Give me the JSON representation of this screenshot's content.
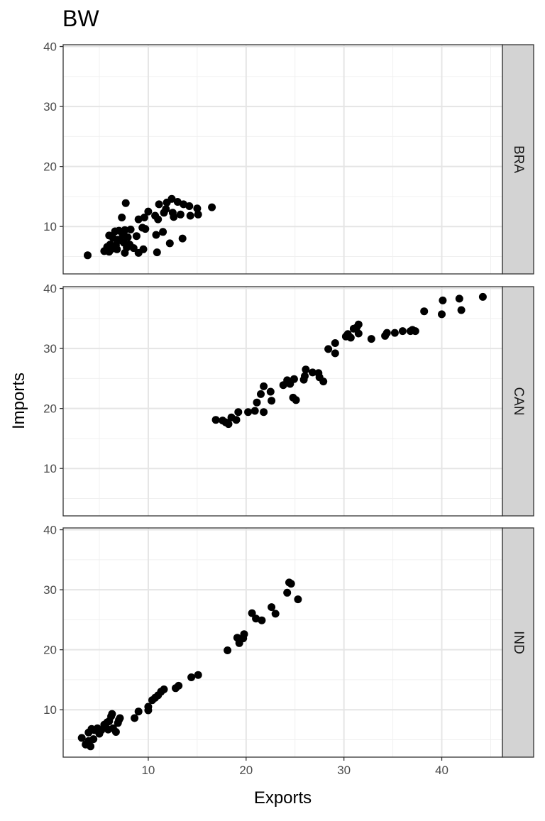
{
  "chart_data": {
    "type": "scatter",
    "title": "BW",
    "xlabel": "Exports",
    "ylabel": "Imports",
    "xlim": [
      1.3,
      46.2
    ],
    "ylim": [
      2.1,
      40.3
    ],
    "x_ticks": [
      10,
      20,
      30,
      40
    ],
    "y_ticks": [
      10,
      20,
      30,
      40
    ],
    "grid": true,
    "point_color": "#000000",
    "strip_fill": "#d3d3d3",
    "panels": [
      {
        "label": "BRA",
        "points": [
          [
            3.8,
            5.2
          ],
          [
            5.5,
            5.9
          ],
          [
            5.8,
            6.6
          ],
          [
            6.0,
            5.8
          ],
          [
            6.3,
            6.3
          ],
          [
            6.1,
            7.0
          ],
          [
            6.4,
            8.1
          ],
          [
            6.7,
            6.9
          ],
          [
            6.9,
            7.8
          ],
          [
            7.0,
            9.3
          ],
          [
            7.2,
            7.7
          ],
          [
            7.4,
            8.7
          ],
          [
            7.6,
            9.4
          ],
          [
            7.8,
            6.5
          ],
          [
            7.9,
            8.2
          ],
          [
            7.3,
            11.5
          ],
          [
            7.6,
            5.6
          ],
          [
            7.7,
            13.9
          ],
          [
            8.1,
            7.0
          ],
          [
            8.2,
            9.5
          ],
          [
            8.5,
            6.4
          ],
          [
            8.8,
            8.4
          ],
          [
            9.0,
            5.6
          ],
          [
            9.0,
            11.2
          ],
          [
            9.4,
            9.8
          ],
          [
            9.5,
            6.2
          ],
          [
            9.6,
            11.5
          ],
          [
            9.7,
            9.6
          ],
          [
            10.0,
            12.5
          ],
          [
            10.7,
            11.8
          ],
          [
            11.0,
            11.2
          ],
          [
            11.1,
            13.7
          ],
          [
            10.8,
            8.6
          ],
          [
            10.9,
            5.7
          ],
          [
            11.5,
            9.1
          ],
          [
            11.6,
            12.3
          ],
          [
            11.8,
            12.9
          ],
          [
            11.9,
            14.0
          ],
          [
            12.2,
            7.2
          ],
          [
            12.4,
            14.6
          ],
          [
            12.5,
            12.3
          ],
          [
            12.6,
            11.6
          ],
          [
            13.0,
            14.1
          ],
          [
            13.3,
            12.0
          ],
          [
            13.5,
            8.0
          ],
          [
            13.6,
            13.7
          ],
          [
            14.2,
            13.4
          ],
          [
            14.3,
            11.8
          ],
          [
            15.0,
            13.0
          ],
          [
            15.1,
            12.0
          ],
          [
            16.5,
            13.2
          ],
          [
            6.0,
            8.5
          ],
          [
            6.8,
            6.2
          ],
          [
            7.5,
            7.3
          ],
          [
            6.6,
            9.2
          ]
        ]
      },
      {
        "label": "CAN",
        "points": [
          [
            16.9,
            18.1
          ],
          [
            17.6,
            18.0
          ],
          [
            17.9,
            17.7
          ],
          [
            18.2,
            17.4
          ],
          [
            18.5,
            18.5
          ],
          [
            19.0,
            18.1
          ],
          [
            19.2,
            19.4
          ],
          [
            20.2,
            19.4
          ],
          [
            20.9,
            19.6
          ],
          [
            21.1,
            21.0
          ],
          [
            21.5,
            22.4
          ],
          [
            21.8,
            19.4
          ],
          [
            21.8,
            23.7
          ],
          [
            22.6,
            21.3
          ],
          [
            22.5,
            22.8
          ],
          [
            23.8,
            23.9
          ],
          [
            24.2,
            24.7
          ],
          [
            24.5,
            24.1
          ],
          [
            24.8,
            21.8
          ],
          [
            24.9,
            24.9
          ],
          [
            25.1,
            21.4
          ],
          [
            25.9,
            24.8
          ],
          [
            26.0,
            25.4
          ],
          [
            26.1,
            26.5
          ],
          [
            26.8,
            26.0
          ],
          [
            27.4,
            25.9
          ],
          [
            27.5,
            25.2
          ],
          [
            27.9,
            24.5
          ],
          [
            28.4,
            29.9
          ],
          [
            29.1,
            30.9
          ],
          [
            29.1,
            29.2
          ],
          [
            30.2,
            32.0
          ],
          [
            30.4,
            32.4
          ],
          [
            30.7,
            31.8
          ],
          [
            31.0,
            33.3
          ],
          [
            31.3,
            33.5
          ],
          [
            31.5,
            34.0
          ],
          [
            31.5,
            32.5
          ],
          [
            32.8,
            31.6
          ],
          [
            34.2,
            32.1
          ],
          [
            34.4,
            32.6
          ],
          [
            35.2,
            32.6
          ],
          [
            36.0,
            32.9
          ],
          [
            36.8,
            32.9
          ],
          [
            37.0,
            33.1
          ],
          [
            37.3,
            32.9
          ],
          [
            38.2,
            36.2
          ],
          [
            40.0,
            35.7
          ],
          [
            40.1,
            38.0
          ],
          [
            41.8,
            38.3
          ],
          [
            42.0,
            36.4
          ],
          [
            44.2,
            38.6
          ]
        ]
      },
      {
        "label": "IND",
        "points": [
          [
            3.2,
            5.3
          ],
          [
            3.6,
            4.2
          ],
          [
            3.9,
            4.8
          ],
          [
            4.1,
            3.9
          ],
          [
            3.9,
            6.2
          ],
          [
            4.2,
            6.8
          ],
          [
            4.4,
            5.1
          ],
          [
            4.5,
            6.6
          ],
          [
            4.8,
            6.9
          ],
          [
            5.0,
            6.0
          ],
          [
            5.2,
            6.6
          ],
          [
            5.5,
            7.5
          ],
          [
            5.6,
            7.1
          ],
          [
            5.8,
            7.9
          ],
          [
            5.9,
            6.7
          ],
          [
            6.0,
            8.1
          ],
          [
            6.2,
            8.9
          ],
          [
            6.3,
            9.3
          ],
          [
            6.4,
            6.9
          ],
          [
            6.7,
            6.3
          ],
          [
            6.9,
            7.8
          ],
          [
            7.0,
            8.3
          ],
          [
            7.1,
            8.6
          ],
          [
            8.6,
            8.6
          ],
          [
            9.0,
            9.7
          ],
          [
            10.0,
            9.9
          ],
          [
            10.0,
            10.5
          ],
          [
            10.4,
            11.6
          ],
          [
            10.7,
            12.0
          ],
          [
            11.0,
            12.4
          ],
          [
            11.3,
            13.0
          ],
          [
            11.6,
            13.4
          ],
          [
            12.8,
            13.6
          ],
          [
            13.1,
            14.0
          ],
          [
            14.4,
            15.4
          ],
          [
            15.1,
            15.8
          ],
          [
            18.1,
            19.9
          ],
          [
            19.1,
            22.0
          ],
          [
            19.3,
            21.1
          ],
          [
            19.7,
            21.9
          ],
          [
            19.8,
            22.6
          ],
          [
            20.6,
            26.1
          ],
          [
            21.0,
            25.2
          ],
          [
            21.6,
            24.9
          ],
          [
            22.6,
            27.1
          ],
          [
            23.0,
            26.0
          ],
          [
            24.2,
            29.5
          ],
          [
            24.4,
            31.2
          ],
          [
            24.6,
            31.0
          ],
          [
            25.3,
            28.4
          ]
        ]
      }
    ]
  }
}
